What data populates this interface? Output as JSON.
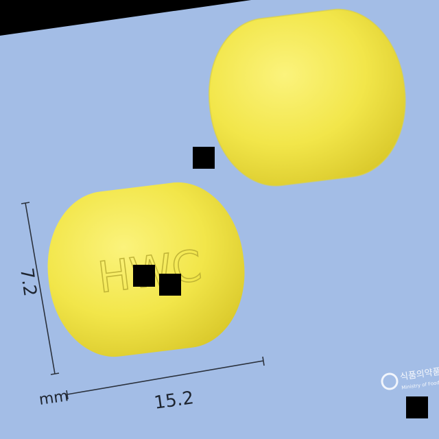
{
  "image": {
    "colors": {
      "background": "#a3bde6",
      "pill": "#f2e64a",
      "pill_shadow": "#d9c82a",
      "pill_highlight": "#fbf37c",
      "imprint": "#b9ad32",
      "measure_line": "#2a313c",
      "mask": "#000000"
    },
    "pills": {
      "back": {
        "imprint": ""
      },
      "front": {
        "imprint": "HWC"
      }
    },
    "measurements": {
      "height_value": "7.2",
      "width_value": "15.2",
      "unit": "mm"
    },
    "watermark": {
      "text_ko": "식품의약품안전처",
      "text_en": "Ministry of Food and Drug Safety"
    }
  }
}
